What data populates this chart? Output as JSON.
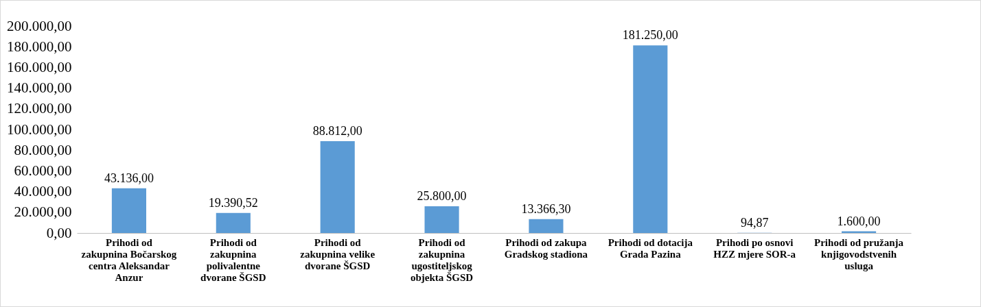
{
  "chart_data": {
    "type": "bar",
    "categories": [
      "Prihodi od zakupnina Bočarskog centra Aleksandar Anzur",
      "Prihodi od zakupnina polivalentne dvorane ŠGSD",
      "Prihodi od zakupnina velike dvorane ŠGSD",
      "Prihodi od zakupnina ugostiteljskog objekta ŠGSD",
      "Prihodi od zakupa Gradskog stadiona",
      "Prihodi od dotacija Grada Pazina",
      "Prihodi po osnovi HZZ mjere SOR-a",
      "Prihodi od pružanja knjigovodstvenih usluga"
    ],
    "values": [
      43136,
      19390.52,
      88812,
      25800,
      13366.3,
      181250,
      94.87,
      1600
    ],
    "value_labels": [
      "43.136,00",
      "19.390,52",
      "88.812,00",
      "25.800,00",
      "13.366,30",
      "181.250,00",
      "94,87",
      "1.600,00"
    ],
    "color": "#5b9bd5",
    "ylim": [
      0,
      200000
    ],
    "yticks": [
      {
        "value": 0,
        "label": "0,00"
      },
      {
        "value": 20000,
        "label": "20.000,00"
      },
      {
        "value": 40000,
        "label": "40.000,00"
      },
      {
        "value": 60000,
        "label": "60.000,00"
      },
      {
        "value": 80000,
        "label": "80.000,00"
      },
      {
        "value": 100000,
        "label": "100.000,00"
      },
      {
        "value": 120000,
        "label": "120.000,00"
      },
      {
        "value": 140000,
        "label": "140.000,00"
      },
      {
        "value": 160000,
        "label": "160.000,00"
      },
      {
        "value": 180000,
        "label": "180.000,00"
      },
      {
        "value": 200000,
        "label": "200.000,00"
      }
    ],
    "grid": false
  }
}
